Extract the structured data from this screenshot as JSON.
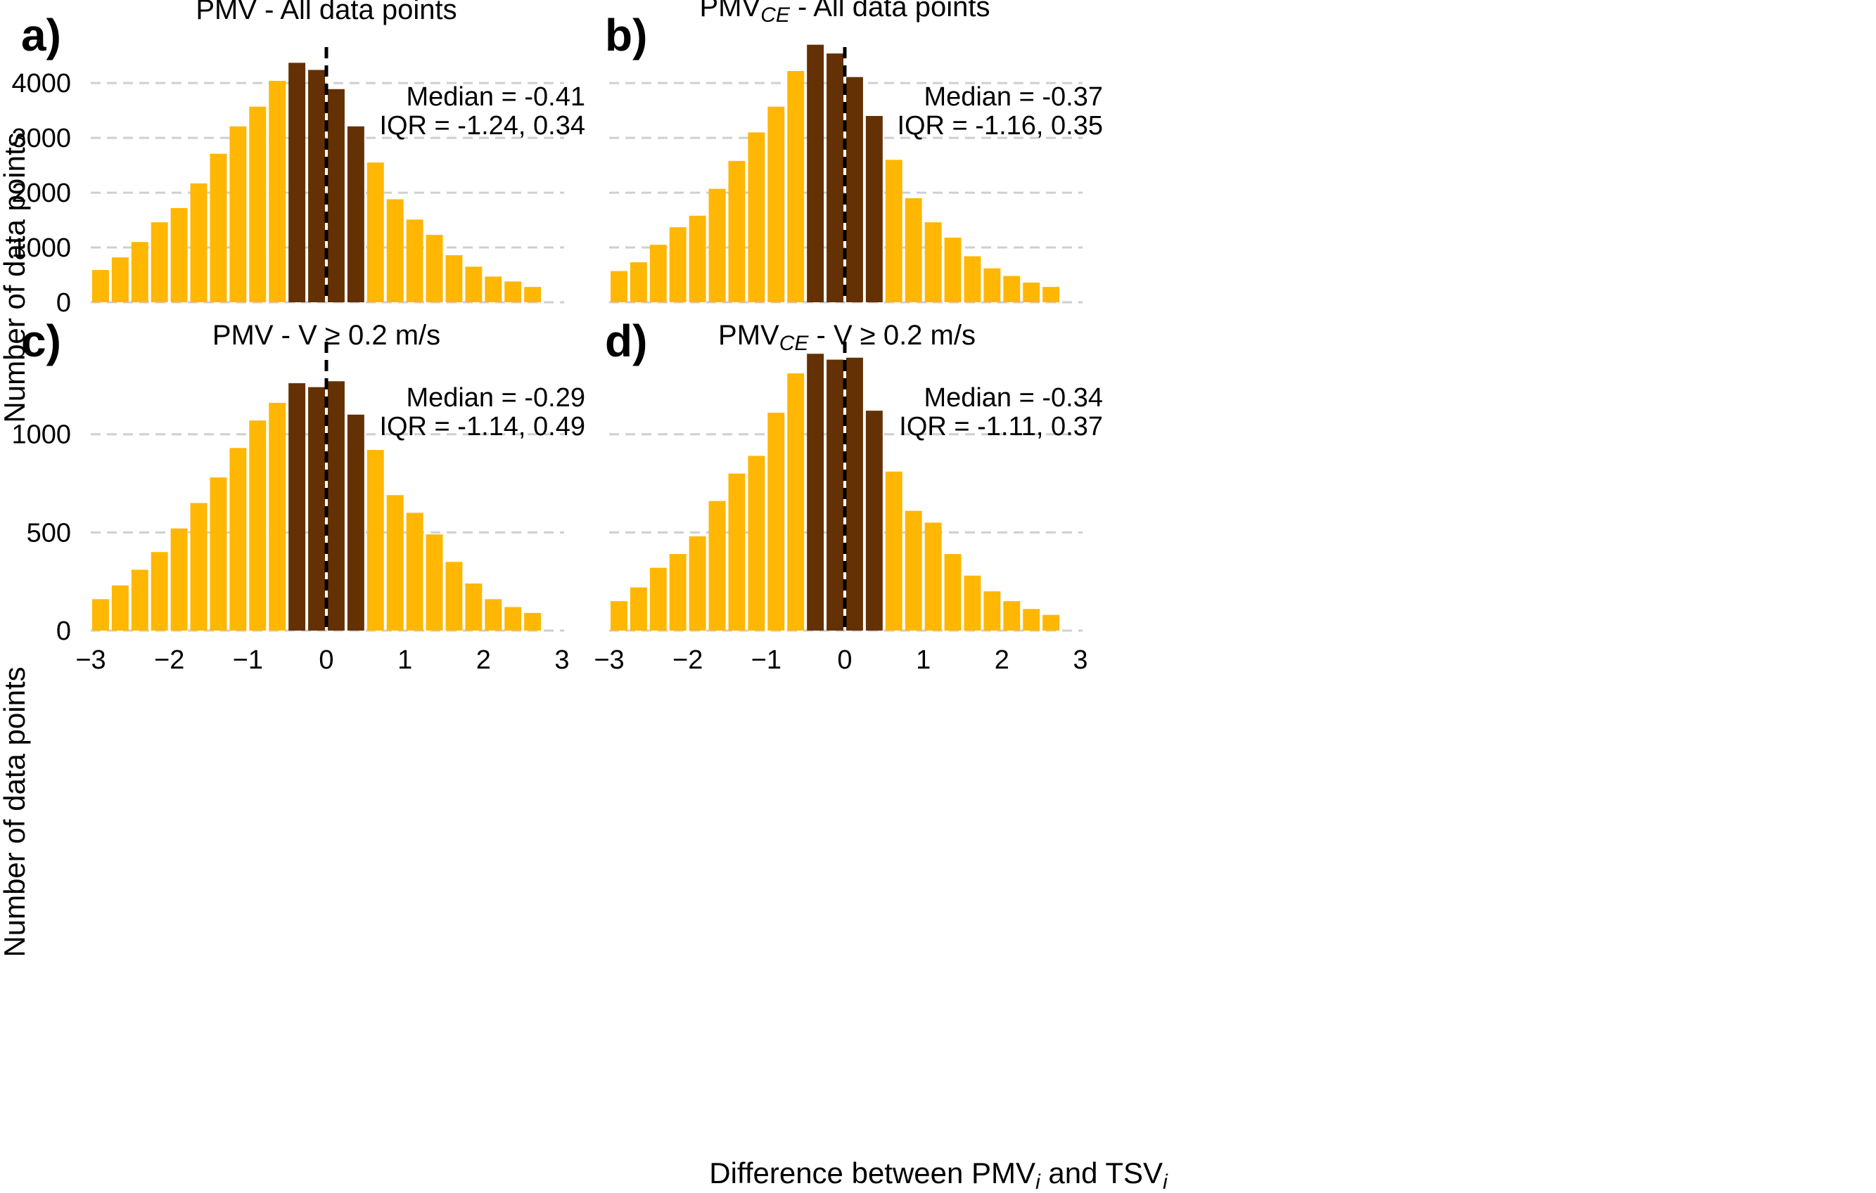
{
  "figure": {
    "ylabel": "Number of data points",
    "xlabel": {
      "pre": "Difference between PMV",
      "sub1": "i",
      "mid": " and TSV",
      "sub2": "i"
    },
    "colors": {
      "outer_bins": "#FFB703",
      "inner_bins": "#633103",
      "zero_line": "#000000",
      "grid": "#cfcfcf"
    },
    "x_ticks": [
      "−3",
      "−2",
      "−1",
      "0",
      "1",
      "2",
      "3"
    ]
  },
  "chart_data": [
    {
      "type": "bar",
      "letter": "a)",
      "title_main": "PMV - All data points",
      "title_sub": "",
      "title_rest": "",
      "median_text": "Median = -0.41",
      "iqr_text": "IQR = -1.24, 0.34",
      "xlim": [
        -3,
        3
      ],
      "ylim": [
        0,
        4400
      ],
      "y_ticks": [
        0,
        1000,
        2000,
        3000,
        4000
      ],
      "bin_width": 0.25,
      "bin_start": -3.0,
      "inner_range": [
        -0.5,
        0.5
      ],
      "values": [
        590,
        820,
        1100,
        1460,
        1720,
        2170,
        2710,
        3210,
        3570,
        4040,
        4370,
        4240,
        3890,
        3210,
        2550,
        1880,
        1510,
        1230,
        860,
        650,
        470,
        380,
        280
      ]
    },
    {
      "type": "bar",
      "letter": "b)",
      "title_main": "PMV",
      "title_sub": "CE",
      "title_rest": " - All data points",
      "median_text": "Median = -0.37",
      "iqr_text": "IQR = -1.16, 0.35",
      "xlim": [
        -3,
        3
      ],
      "ylim": [
        0,
        4400
      ],
      "y_ticks": [
        0,
        1000,
        2000,
        3000,
        4000
      ],
      "bin_width": 0.25,
      "bin_start": -3.0,
      "inner_range": [
        -0.5,
        0.5
      ],
      "values": [
        570,
        730,
        1050,
        1370,
        1580,
        2070,
        2580,
        3100,
        3570,
        4220,
        4700,
        4540,
        4110,
        3400,
        2600,
        1900,
        1460,
        1180,
        840,
        620,
        480,
        360,
        280
      ]
    },
    {
      "type": "bar",
      "letter": "c)",
      "title_main": "PMV - V ",
      "title_ge": "≥",
      "title_rest": " 0.2 m/s",
      "median_text": "Median = -0.29",
      "iqr_text": "IQR = -1.14, 0.49",
      "xlim": [
        -3,
        3
      ],
      "ylim": [
        0,
        1400
      ],
      "y_ticks": [
        0,
        500,
        1000
      ],
      "bin_width": 0.25,
      "bin_start": -3.0,
      "inner_range": [
        -0.5,
        0.5
      ],
      "values": [
        160,
        230,
        310,
        400,
        520,
        650,
        780,
        930,
        1070,
        1160,
        1260,
        1240,
        1270,
        1100,
        920,
        690,
        600,
        490,
        350,
        240,
        160,
        120,
        90
      ]
    },
    {
      "type": "bar",
      "letter": "d)",
      "title_main": "PMV",
      "title_sub": "CE",
      "title_rest": " - V ",
      "title_ge": "≥",
      "title_rest2": " 0.2 m/s",
      "median_text": "Median = -0.34",
      "iqr_text": "IQR = -1.11, 0.37",
      "xlim": [
        -3,
        3
      ],
      "ylim": [
        0,
        1400
      ],
      "y_ticks": [
        0,
        500,
        1000
      ],
      "bin_width": 0.25,
      "bin_start": -3.0,
      "inner_range": [
        -0.5,
        0.5
      ],
      "values": [
        150,
        220,
        320,
        390,
        480,
        660,
        800,
        890,
        1110,
        1310,
        1410,
        1380,
        1390,
        1120,
        810,
        610,
        550,
        390,
        280,
        200,
        150,
        110,
        80
      ]
    }
  ]
}
